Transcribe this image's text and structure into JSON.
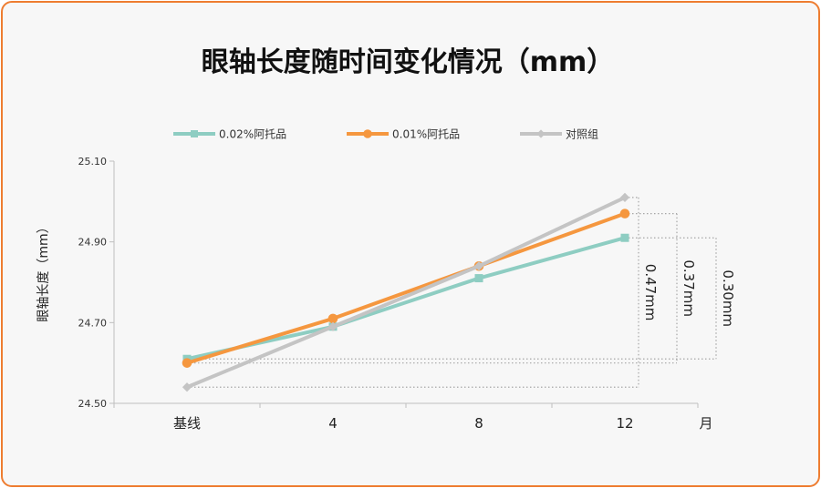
{
  "chart_data": {
    "type": "line",
    "title": "眼轴长度随时间变化情况（mm）",
    "ylabel": "眼轴长度（mm）",
    "xunit": "月",
    "categories": [
      "基线",
      "4",
      "8",
      "12"
    ],
    "ylim": [
      24.5,
      25.1
    ],
    "yticks": [
      24.5,
      24.7,
      24.9,
      25.1
    ],
    "ytick_labels": [
      "24.50",
      "24.70",
      "24.90",
      "25.10"
    ],
    "grid": false,
    "legend_position": "top",
    "series": [
      {
        "name": "0.02%阿托品",
        "values": [
          24.61,
          24.69,
          24.81,
          24.91
        ],
        "color": "#8ecdc2",
        "marker": "square"
      },
      {
        "name": "0.01%阿托品",
        "values": [
          24.6,
          24.71,
          24.84,
          24.97
        ],
        "color": "#f5973f",
        "marker": "circle"
      },
      {
        "name": "对照组",
        "values": [
          24.54,
          24.69,
          24.84,
          25.01
        ],
        "color": "#c4c4c4",
        "marker": "diamond"
      }
    ],
    "annotations": [
      {
        "label": "0.47mm",
        "series": "对照组"
      },
      {
        "label": "0.37mm",
        "series": "0.01%阿托品"
      },
      {
        "label": "0.30mm",
        "series": "0.02%阿托品"
      }
    ]
  }
}
